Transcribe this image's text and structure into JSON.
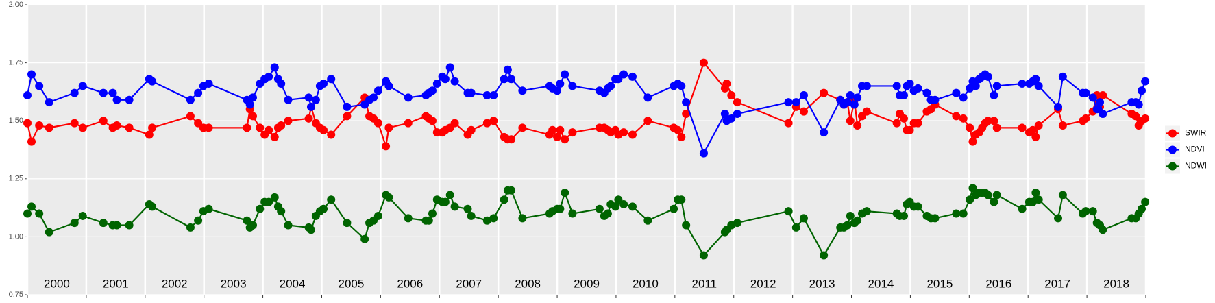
{
  "chart_data": {
    "type": "line",
    "x": [
      2000.0,
      2000.07,
      2000.2,
      2000.37,
      2000.8,
      2000.94,
      2001.29,
      2001.45,
      2001.52,
      2001.73,
      2002.07,
      2002.12,
      2002.77,
      2002.9,
      2002.99,
      2003.08,
      2003.73,
      2003.78,
      2003.83,
      2003.95,
      2004.03,
      2004.1,
      2004.2,
      2004.26,
      2004.31,
      2004.43,
      2004.78,
      2004.82,
      2004.9,
      2004.97,
      2005.03,
      2005.16,
      2005.43,
      2005.73,
      2005.81,
      2005.88,
      2005.96,
      2006.09,
      2006.14,
      2006.47,
      2006.77,
      2006.82,
      2006.88,
      2006.96,
      2007.05,
      2007.1,
      2007.18,
      2007.26,
      2007.48,
      2007.54,
      2007.81,
      2007.92,
      2008.1,
      2008.16,
      2008.22,
      2008.41,
      2008.87,
      2008.92,
      2009.0,
      2009.05,
      2009.13,
      2009.26,
      2009.72,
      2009.8,
      2009.86,
      2009.91,
      2009.99,
      2010.04,
      2010.13,
      2010.28,
      2010.54,
      2010.98,
      2011.05,
      2011.11,
      2011.19,
      2011.49,
      2011.85,
      2011.88,
      2011.96,
      2012.06,
      2012.93,
      2013.06,
      2013.19,
      2013.53,
      2013.81,
      2013.87,
      2013.93,
      2013.98,
      2014.05,
      2014.1,
      2014.18,
      2014.26,
      2014.77,
      2014.82,
      2014.89,
      2014.94,
      2014.99,
      2015.06,
      2015.13,
      2015.28,
      2015.35,
      2015.42,
      2015.78,
      2015.9,
      2016.01,
      2016.06,
      2016.11,
      2016.17,
      2016.22,
      2016.27,
      2016.32,
      2016.42,
      2016.47,
      2016.9,
      2017.02,
      2017.08,
      2017.13,
      2017.18,
      2017.51,
      2017.59,
      2017.93,
      2017.98,
      2018.1,
      2018.17,
      2018.22,
      2018.27,
      2018.76,
      2018.83,
      2018.88,
      2018.93,
      2018.99
    ],
    "series": [
      {
        "name": "SWIR",
        "color": "#ff0000",
        "values": [
          1.49,
          1.41,
          1.48,
          1.47,
          1.49,
          1.47,
          1.5,
          1.47,
          1.48,
          1.47,
          1.44,
          1.47,
          1.52,
          1.49,
          1.47,
          1.47,
          1.47,
          1.55,
          1.52,
          1.47,
          1.44,
          1.46,
          1.43,
          1.47,
          1.48,
          1.5,
          1.51,
          1.56,
          1.49,
          1.47,
          1.46,
          1.44,
          1.52,
          1.6,
          1.52,
          1.51,
          1.49,
          1.39,
          1.47,
          1.49,
          1.52,
          1.51,
          1.5,
          1.45,
          1.45,
          1.46,
          1.47,
          1.49,
          1.44,
          1.46,
          1.49,
          1.5,
          1.43,
          1.42,
          1.42,
          1.47,
          1.44,
          1.46,
          1.43,
          1.46,
          1.42,
          1.45,
          1.47,
          1.47,
          1.46,
          1.45,
          1.46,
          1.44,
          1.45,
          1.44,
          1.5,
          1.47,
          1.46,
          1.43,
          1.53,
          1.75,
          1.64,
          1.66,
          1.61,
          1.58,
          1.49,
          1.56,
          1.54,
          1.62,
          1.59,
          1.57,
          1.58,
          1.5,
          1.59,
          1.48,
          1.52,
          1.54,
          1.49,
          1.53,
          1.51,
          1.46,
          1.46,
          1.49,
          1.49,
          1.54,
          1.55,
          1.57,
          1.52,
          1.51,
          1.47,
          1.41,
          1.44,
          1.45,
          1.47,
          1.49,
          1.5,
          1.5,
          1.47,
          1.47,
          1.45,
          1.46,
          1.43,
          1.48,
          1.55,
          1.48,
          1.5,
          1.51,
          1.54,
          1.61,
          1.56,
          1.61,
          1.53,
          1.52,
          1.48,
          1.5,
          1.51
        ]
      },
      {
        "name": "NDVI",
        "color": "#0000ff",
        "values": [
          1.61,
          1.7,
          1.65,
          1.58,
          1.62,
          1.65,
          1.62,
          1.62,
          1.59,
          1.59,
          1.68,
          1.67,
          1.59,
          1.62,
          1.65,
          1.66,
          1.59,
          1.57,
          1.6,
          1.66,
          1.68,
          1.69,
          1.73,
          1.68,
          1.66,
          1.59,
          1.6,
          1.56,
          1.59,
          1.65,
          1.66,
          1.68,
          1.56,
          1.57,
          1.59,
          1.6,
          1.63,
          1.67,
          1.65,
          1.6,
          1.61,
          1.62,
          1.63,
          1.66,
          1.69,
          1.68,
          1.73,
          1.67,
          1.62,
          1.62,
          1.61,
          1.61,
          1.68,
          1.72,
          1.68,
          1.63,
          1.65,
          1.64,
          1.63,
          1.66,
          1.7,
          1.65,
          1.63,
          1.62,
          1.64,
          1.65,
          1.68,
          1.68,
          1.7,
          1.69,
          1.6,
          1.65,
          1.66,
          1.65,
          1.58,
          1.36,
          1.53,
          1.5,
          1.51,
          1.53,
          1.58,
          1.58,
          1.61,
          1.45,
          1.59,
          1.57,
          1.58,
          1.61,
          1.57,
          1.6,
          1.65,
          1.65,
          1.65,
          1.61,
          1.61,
          1.65,
          1.66,
          1.63,
          1.64,
          1.62,
          1.59,
          1.59,
          1.62,
          1.6,
          1.64,
          1.67,
          1.65,
          1.68,
          1.69,
          1.7,
          1.69,
          1.61,
          1.65,
          1.66,
          1.66,
          1.67,
          1.68,
          1.65,
          1.56,
          1.69,
          1.62,
          1.62,
          1.6,
          1.55,
          1.58,
          1.53,
          1.58,
          1.58,
          1.57,
          1.63,
          1.67
        ]
      },
      {
        "name": "NDWI",
        "color": "#006400",
        "values": [
          1.1,
          1.13,
          1.1,
          1.02,
          1.06,
          1.09,
          1.06,
          1.05,
          1.05,
          1.05,
          1.14,
          1.13,
          1.04,
          1.07,
          1.11,
          1.12,
          1.07,
          1.04,
          1.05,
          1.12,
          1.15,
          1.15,
          1.17,
          1.13,
          1.11,
          1.05,
          1.04,
          1.03,
          1.09,
          1.11,
          1.12,
          1.16,
          1.06,
          0.99,
          1.06,
          1.07,
          1.09,
          1.18,
          1.17,
          1.08,
          1.07,
          1.07,
          1.1,
          1.16,
          1.15,
          1.15,
          1.18,
          1.13,
          1.12,
          1.09,
          1.07,
          1.08,
          1.16,
          1.2,
          1.2,
          1.08,
          1.1,
          1.11,
          1.12,
          1.12,
          1.19,
          1.1,
          1.12,
          1.09,
          1.1,
          1.14,
          1.13,
          1.16,
          1.14,
          1.13,
          1.07,
          1.12,
          1.16,
          1.16,
          1.05,
          0.92,
          1.02,
          1.03,
          1.05,
          1.06,
          1.11,
          1.04,
          1.08,
          0.92,
          1.04,
          1.04,
          1.05,
          1.09,
          1.06,
          1.07,
          1.1,
          1.11,
          1.1,
          1.09,
          1.09,
          1.14,
          1.15,
          1.13,
          1.13,
          1.09,
          1.08,
          1.08,
          1.1,
          1.1,
          1.16,
          1.21,
          1.18,
          1.19,
          1.19,
          1.19,
          1.18,
          1.15,
          1.18,
          1.12,
          1.15,
          1.15,
          1.19,
          1.16,
          1.08,
          1.18,
          1.1,
          1.11,
          1.11,
          1.06,
          1.05,
          1.03,
          1.08,
          1.08,
          1.1,
          1.12,
          1.15
        ]
      }
    ],
    "xlim": [
      2000,
      2019
    ],
    "xticks": [
      2000,
      2001,
      2002,
      2003,
      2004,
      2005,
      2006,
      2007,
      2008,
      2009,
      2010,
      2011,
      2012,
      2013,
      2014,
      2015,
      2016,
      2017,
      2018,
      2019
    ],
    "year_labels": [
      "2000",
      "2001",
      "2002",
      "2003",
      "2004",
      "2005",
      "2006",
      "2007",
      "2008",
      "2009",
      "2010",
      "2011",
      "2012",
      "2013",
      "2014",
      "2015",
      "2016",
      "2017",
      "2018"
    ],
    "ylim": [
      0.75,
      2.0
    ],
    "yticks": [
      {
        "value": 0.75,
        "label": "0.75"
      },
      {
        "value": 1.0,
        "label": "1.00"
      },
      {
        "value": 1.25,
        "label": "1.25"
      },
      {
        "value": 1.5,
        "label": "1.50"
      },
      {
        "value": 1.75,
        "label": "1.75"
      },
      {
        "value": 2.0,
        "label": "2.00"
      }
    ],
    "grid": true,
    "legend_position": "right"
  }
}
